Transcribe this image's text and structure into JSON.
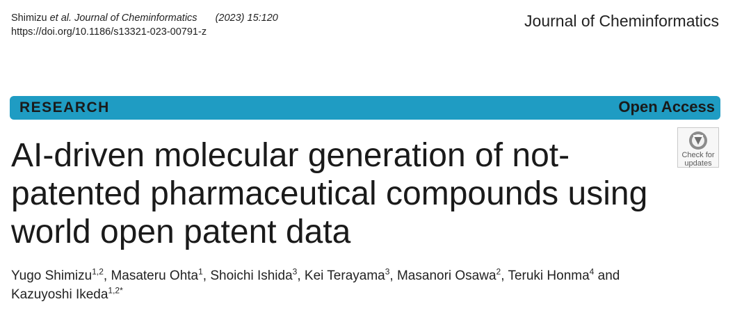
{
  "header": {
    "citation_authors": "Shimizu ",
    "citation_etal": "et al. Journal of Cheminformatics",
    "citation_year": "(2023) 15:120",
    "doi": "https://doi.org/10.1186/s13321-023-00791-z",
    "journal_name": "Journal of Cheminformatics"
  },
  "banner": {
    "article_type": "RESEARCH",
    "access": "Open Access",
    "color": "#1f9cc3"
  },
  "badge": {
    "line1": "Check for",
    "line2": "updates",
    "icon": "check-for-updates-icon"
  },
  "article": {
    "title_line1": "AI-driven molecular generation of not-",
    "title_line2": "patented pharmaceutical compounds using",
    "title_line3": "world open patent data"
  },
  "authors": [
    {
      "name": "Yugo Shimizu",
      "aff": "1,2",
      "sep": ", "
    },
    {
      "name": "Masateru Ohta",
      "aff": "1",
      "sep": ", "
    },
    {
      "name": "Shoichi Ishida",
      "aff": "3",
      "sep": ", "
    },
    {
      "name": "Kei Terayama",
      "aff": "3",
      "sep": ", "
    },
    {
      "name": "Masanori Osawa",
      "aff": "2",
      "sep": ", "
    },
    {
      "name": "Teruki Honma",
      "aff": "4",
      "sep": " and"
    },
    {
      "name": "Kazuyoshi Ikeda",
      "aff": "1,2*",
      "sep": ""
    }
  ]
}
